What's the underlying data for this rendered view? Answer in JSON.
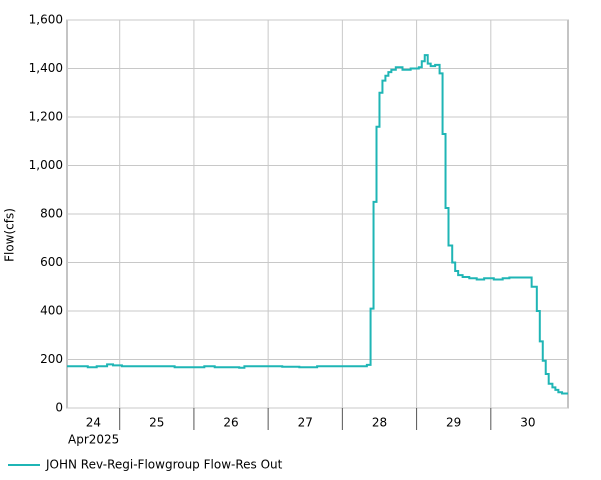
{
  "chart_data": {
    "type": "line",
    "step": true,
    "y_label": "Flow(cfs)",
    "x_sublabel": "Apr2025",
    "xlim": [
      24.29,
      31.04
    ],
    "xticks": [
      24,
      25,
      26,
      27,
      28,
      29,
      30
    ],
    "ylim": [
      0,
      1600
    ],
    "yticks": [
      0,
      {
        "value": 200,
        "label": "200"
      },
      {
        "value": 400,
        "label": "400"
      },
      {
        "value": 600,
        "label": "600"
      },
      {
        "value": 800,
        "label": "800"
      },
      {
        "value": 1000,
        "label": "1,000"
      },
      {
        "value": 1200,
        "label": "1,200"
      },
      {
        "value": 1400,
        "label": "1,400"
      },
      {
        "value": 1600,
        "label": "1,600"
      }
    ],
    "grid": true,
    "legend": "bottom-left",
    "series": [
      {
        "name": "JOHN Rev-Regi-Flowgroup Flow-Res Out",
        "color": "#1fb5b5",
        "x": [
          24.29,
          24.57,
          24.69,
          24.83,
          24.91,
          25.03,
          25.74,
          26.14,
          26.28,
          26.61,
          26.68,
          27.19,
          27.42,
          27.66,
          28.33,
          28.38,
          28.42,
          28.46,
          28.5,
          28.54,
          28.58,
          28.62,
          28.66,
          28.72,
          28.81,
          28.92,
          29.03,
          29.07,
          29.11,
          29.15,
          29.19,
          29.25,
          29.31,
          29.35,
          29.39,
          29.43,
          29.48,
          29.52,
          29.56,
          29.62,
          29.71,
          29.81,
          29.91,
          30.04,
          30.16,
          30.25,
          30.55,
          30.62,
          30.66,
          30.7,
          30.74,
          30.78,
          30.83,
          30.87,
          30.91,
          30.96,
          31.04
        ],
        "values": [
          172,
          168,
          172,
          180,
          176,
          172,
          168,
          172,
          168,
          166,
          172,
          170,
          168,
          172,
          178,
          410,
          850,
          1160,
          1300,
          1350,
          1370,
          1385,
          1395,
          1405,
          1395,
          1400,
          1405,
          1430,
          1455,
          1420,
          1410,
          1415,
          1380,
          1130,
          825,
          670,
          600,
          565,
          548,
          540,
          535,
          530,
          535,
          530,
          535,
          538,
          500,
          400,
          275,
          195,
          140,
          100,
          85,
          75,
          65,
          60,
          60
        ]
      }
    ]
  }
}
